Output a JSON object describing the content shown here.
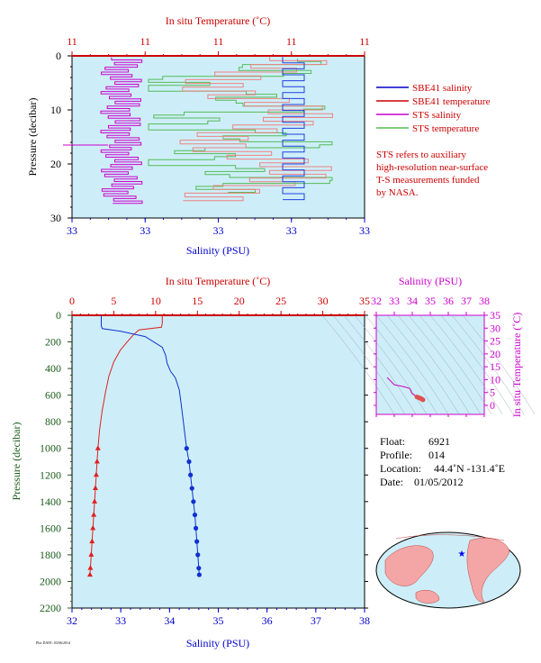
{
  "chart_data": [
    {
      "type": "line",
      "top_axis": {
        "label": "In situ Temperature (˚C)",
        "ticks": [
          "11",
          "11",
          "11",
          "11",
          "11"
        ]
      },
      "bottom_axis": {
        "label": "Salinity (PSU)",
        "ticks": [
          "33",
          "33",
          "33",
          "33",
          "33"
        ]
      },
      "y_axis": {
        "label": "Pressure (decibar)",
        "ticks": [
          "0",
          "10",
          "20",
          "30"
        ],
        "ylim": [
          30,
          0
        ]
      },
      "legend": [
        {
          "name": "SBE41 salinity",
          "color": "#0000cc"
        },
        {
          "name": "SBE41 temperature",
          "color": "#cc0000"
        },
        {
          "name": "STS salinity",
          "color": "#cc00cc"
        },
        {
          "name": "STS temperature",
          "color": "#55bb55"
        }
      ],
      "note": [
        "STS refers to auxiliary",
        "high-resolution near-surface",
        "T-S measurements funded",
        "by NASA."
      ]
    },
    {
      "type": "line",
      "top_axis": {
        "label": "In situ Temperature (˚C)",
        "ticks": [
          "0",
          "5",
          "10",
          "15",
          "20",
          "25",
          "30",
          "35"
        ],
        "xlim": [
          0,
          35
        ]
      },
      "bottom_axis": {
        "label": "Salinity (PSU)",
        "ticks": [
          "32",
          "33",
          "34",
          "35",
          "36",
          "37",
          "38"
        ],
        "xlim": [
          32,
          38
        ]
      },
      "y_axis": {
        "label": "Pressure (decibar)",
        "ticks": [
          "0",
          "200",
          "400",
          "600",
          "800",
          "1000",
          "1200",
          "1400",
          "1600",
          "1800",
          "2000",
          "2200"
        ],
        "ylim": [
          2200,
          0
        ]
      },
      "series": [
        {
          "name": "temperature",
          "values": [
            [
              10.8,
              0
            ],
            [
              10.8,
              60
            ],
            [
              10.7,
              90
            ],
            [
              8.0,
              110
            ],
            [
              7.3,
              150
            ],
            [
              6.6,
              200
            ],
            [
              5.8,
              260
            ],
            [
              5.0,
              350
            ],
            [
              4.4,
              460
            ],
            [
              4.0,
              580
            ],
            [
              3.6,
              720
            ],
            [
              3.3,
              860
            ],
            [
              3.1,
              1000
            ],
            [
              3.0,
              1100
            ],
            [
              2.9,
              1200
            ],
            [
              2.8,
              1300
            ],
            [
              2.7,
              1400
            ],
            [
              2.6,
              1500
            ],
            [
              2.5,
              1600
            ],
            [
              2.4,
              1700
            ],
            [
              2.3,
              1800
            ],
            [
              2.2,
              1900
            ],
            [
              2.15,
              1950
            ]
          ]
        },
        {
          "name": "salinity",
          "values": [
            [
              32.6,
              0
            ],
            [
              32.6,
              80
            ],
            [
              32.62,
              100
            ],
            [
              33.0,
              120
            ],
            [
              33.5,
              160
            ],
            [
              33.85,
              240
            ],
            [
              33.92,
              300
            ],
            [
              33.95,
              360
            ],
            [
              34.02,
              420
            ],
            [
              34.12,
              470
            ],
            [
              34.2,
              560
            ],
            [
              34.25,
              700
            ],
            [
              34.3,
              850
            ],
            [
              34.35,
              1000
            ],
            [
              34.4,
              1100
            ],
            [
              34.43,
              1200
            ],
            [
              34.46,
              1300
            ],
            [
              34.49,
              1400
            ],
            [
              34.52,
              1500
            ],
            [
              34.54,
              1600
            ],
            [
              34.56,
              1700
            ],
            [
              34.58,
              1800
            ],
            [
              34.6,
              1900
            ],
            [
              34.61,
              1950
            ]
          ]
        }
      ]
    },
    {
      "type": "scatter",
      "top_axis": {
        "label": "Salinity (PSU)",
        "ticks": [
          "32",
          "33",
          "34",
          "35",
          "36",
          "37",
          "38"
        ],
        "xlim": [
          32,
          38
        ]
      },
      "right_axis": {
        "label": "In situ Temperature (˚C)",
        "ticks": [
          "0",
          "5",
          "10",
          "15",
          "20",
          "25",
          "30",
          "35"
        ],
        "ylim": [
          0,
          35
        ]
      }
    }
  ],
  "info": {
    "float_label": "Float:",
    "float_value": "6921",
    "profile_label": "Profile:",
    "profile_value": "014",
    "location_label": "Location:",
    "location_value": "44.4˚N  -131.4˚E",
    "date_label": "Date:",
    "date_value": "01/05/2012"
  },
  "footer": "Plot DATE: 03/06/2014"
}
